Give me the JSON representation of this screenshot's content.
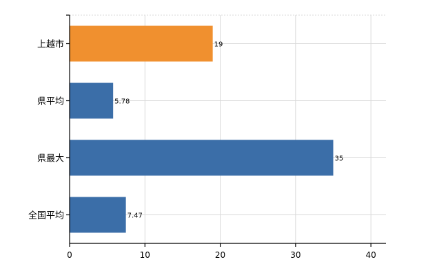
{
  "chart_data": {
    "type": "bar",
    "orientation": "horizontal",
    "categories": [
      "上越市",
      "県平均",
      "県最大",
      "全国平均"
    ],
    "values": [
      19,
      5.78,
      35,
      7.47
    ],
    "value_labels": [
      "19",
      "5.78",
      "35",
      "7.47"
    ],
    "bar_colors": [
      "#f0902f",
      "#3b6ea8",
      "#3b6ea8",
      "#3b6ea8"
    ],
    "highlight_color": "#f0902f",
    "base_color": "#3b6ea8",
    "title": "",
    "xlabel": "",
    "ylabel": "",
    "xlim": [
      0,
      42
    ],
    "x_ticks": [
      0,
      10,
      20,
      30,
      40
    ],
    "grid": true,
    "legend": "none"
  }
}
